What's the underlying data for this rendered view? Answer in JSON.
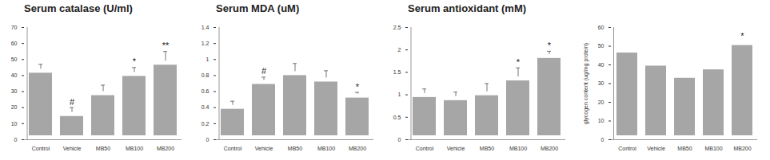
{
  "chart_data": [
    {
      "type": "bar",
      "title": "Serum catalase (U/ml)",
      "categories": [
        "Control",
        "Vehicle",
        "MB50",
        "MB100",
        "MB200"
      ],
      "values": [
        44,
        17,
        30,
        42,
        49
      ],
      "errors": [
        3,
        3,
        4,
        3,
        6
      ],
      "annotations": [
        {
          "category": "Vehicle",
          "text": "#"
        },
        {
          "category": "MB100",
          "text": "*"
        },
        {
          "category": "MB200",
          "text": "**"
        }
      ],
      "color": "#a6a6a6",
      "ylim": [
        0,
        70
      ],
      "yticks": [
        0,
        10,
        20,
        30,
        40,
        50,
        60,
        70
      ]
    },
    {
      "type": "bar",
      "title": "Serum MDA (uM)",
      "categories": [
        "Control",
        "Vehicle",
        "MB50",
        "MB100",
        "MB200"
      ],
      "values": [
        0.43,
        0.74,
        0.85,
        0.77,
        0.57
      ],
      "errors": [
        0.05,
        0.04,
        0.1,
        0.09,
        0.02
      ],
      "annotations": [
        {
          "category": "Vehicle",
          "text": "#"
        },
        {
          "category": "MB200",
          "text": "*"
        }
      ],
      "color": "#a6a6a6",
      "ylim": [
        0,
        1.4
      ],
      "yticks": [
        0,
        0.2,
        0.4,
        0.6,
        0.8,
        1,
        1.2,
        1.4
      ]
    },
    {
      "type": "bar",
      "title": "Serum antioxidant (mM)",
      "categories": [
        "Control",
        "Vehicle",
        "MB50",
        "MB100",
        "MB200"
      ],
      "values": [
        1.03,
        0.96,
        1.07,
        1.4,
        1.9
      ],
      "errors": [
        0.1,
        0.1,
        0.18,
        0.2,
        0.07
      ],
      "annotations": [
        {
          "category": "MB100",
          "text": "*"
        },
        {
          "category": "MB200",
          "text": "*"
        }
      ],
      "color": "#a6a6a6",
      "ylim": [
        0,
        2.5
      ],
      "yticks": [
        0,
        0.5,
        1,
        1.5,
        2,
        2.5
      ]
    },
    {
      "type": "bar",
      "ylabel": "glycogen content (ug/mg protein)",
      "categories": [
        "Control",
        "Vehicle",
        "MB50",
        "MB100",
        "MB200"
      ],
      "values": [
        48.5,
        41.5,
        35,
        39.5,
        52.5
      ],
      "annotations": [
        {
          "category": "MB200",
          "text": "*"
        }
      ],
      "color": "#a6a6a6",
      "ylim": [
        0,
        60
      ],
      "yticks": [
        0,
        10,
        20,
        30,
        40,
        50,
        60
      ]
    }
  ]
}
